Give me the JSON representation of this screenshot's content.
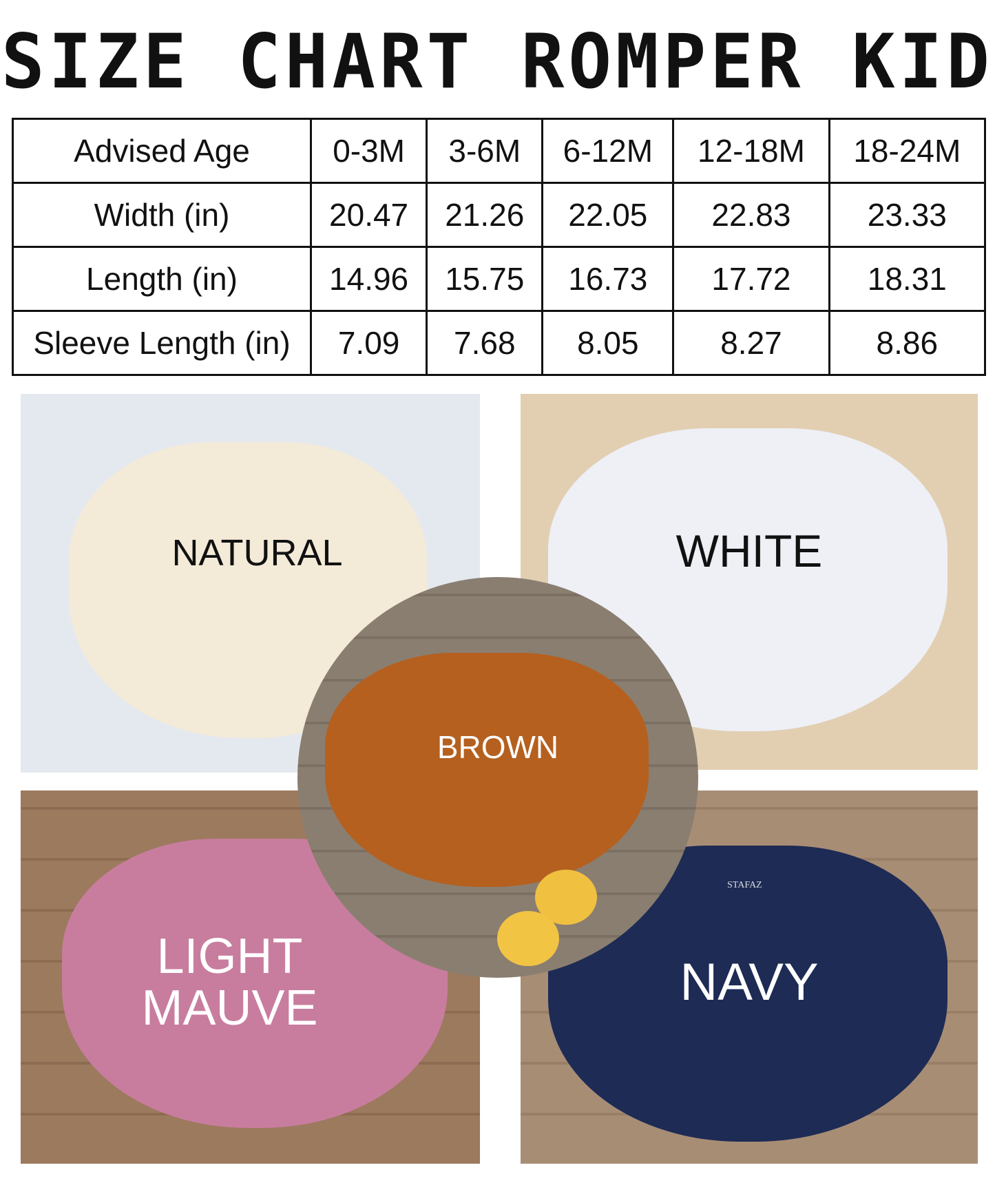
{
  "title": "SIZE CHART ROMPER KID",
  "table": {
    "rows": [
      {
        "label": "Advised Age",
        "values": [
          "0-3M",
          "3-6M",
          "6-12M",
          "12-18M",
          "18-24M"
        ]
      },
      {
        "label": "Width (in)",
        "values": [
          "20.47",
          "21.26",
          "22.05",
          "22.83",
          "23.33"
        ]
      },
      {
        "label": "Length (in)",
        "values": [
          "14.96",
          "15.75",
          "16.73",
          "17.72",
          "18.31"
        ]
      },
      {
        "label": "Sleeve Length (in)",
        "values": [
          "7.09",
          "7.68",
          "8.05",
          "8.27",
          "8.86"
        ]
      }
    ]
  },
  "colors": [
    {
      "name": "NATURAL",
      "swatch": "#f3ead8"
    },
    {
      "name": "WHITE",
      "swatch": "#eef0f6"
    },
    {
      "name": "BROWN",
      "swatch": "#b5601f"
    },
    {
      "name": "LIGHT MAUVE",
      "line1": "LIGHT",
      "line2": "MAUVE",
      "swatch": "#c87d9e"
    },
    {
      "name": "NAVY",
      "swatch": "#1d2b55"
    }
  ],
  "brand": "STAFAZ"
}
